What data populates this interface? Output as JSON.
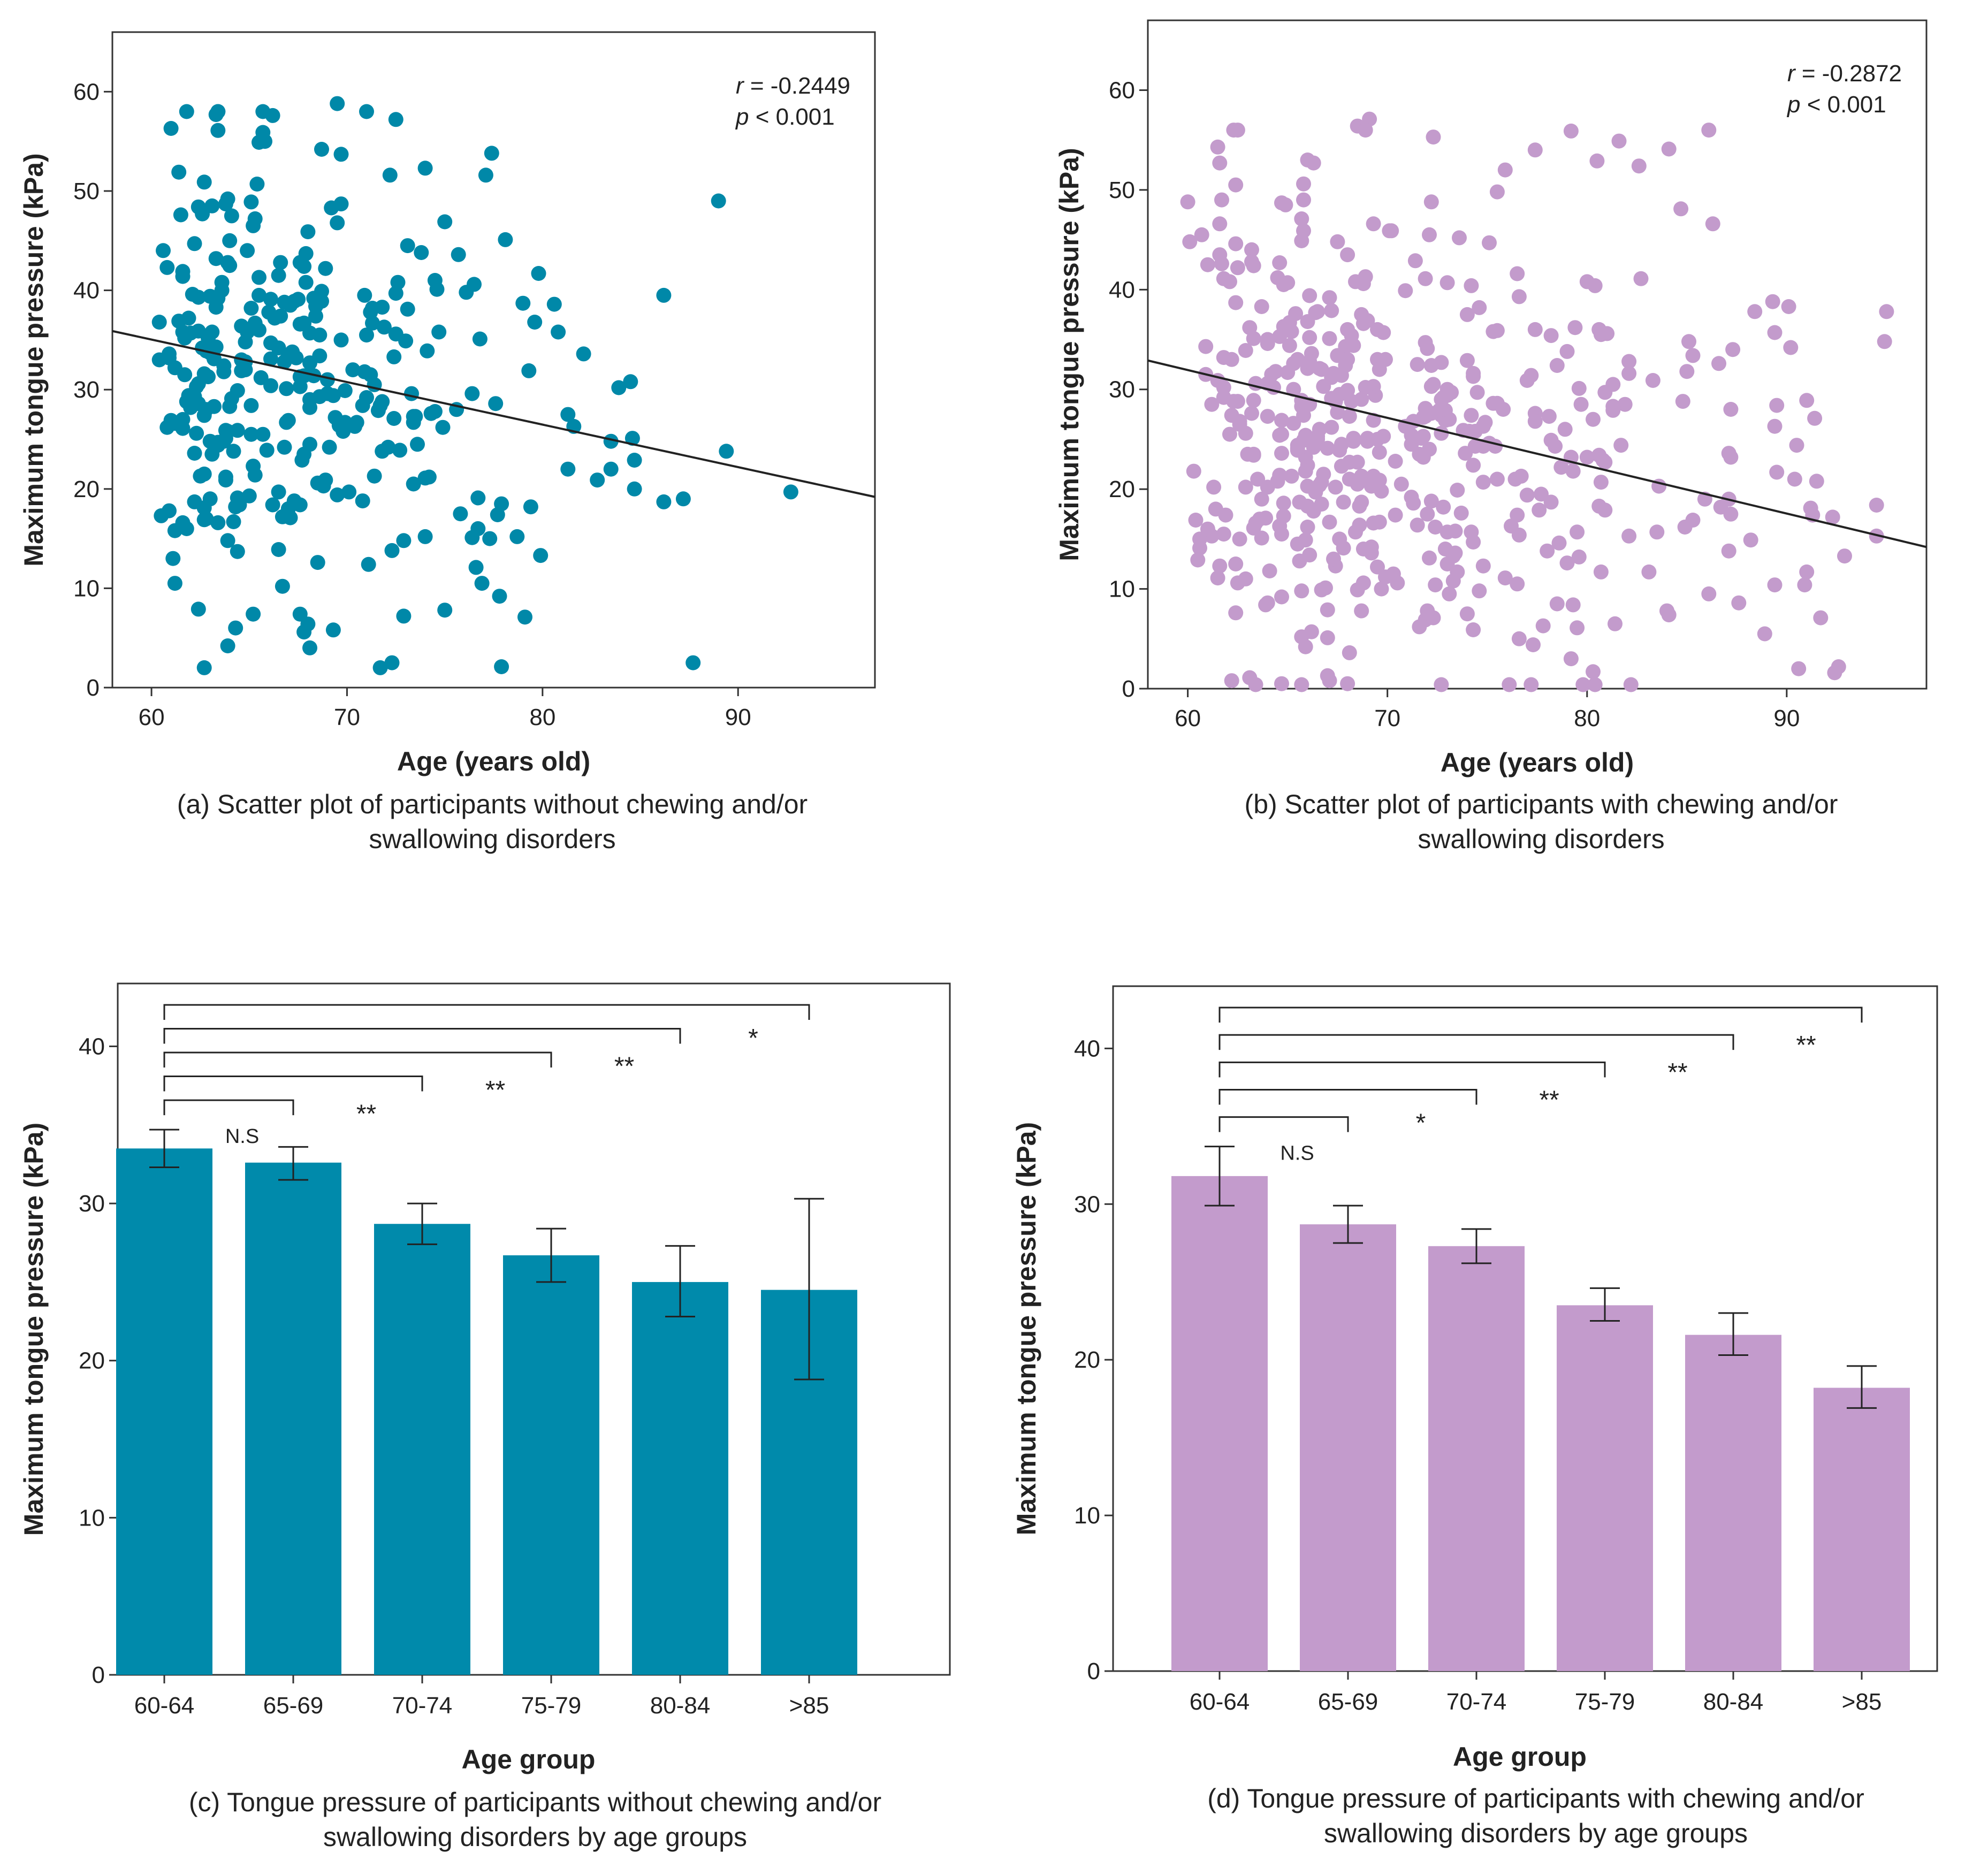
{
  "chart_data": [
    {
      "id": "a",
      "type": "scatter",
      "xlabel": "Age (years old)",
      "ylabel": "Maximum tongue pressure (kPa)",
      "xlim": [
        58,
        97
      ],
      "ylim": [
        0,
        66
      ],
      "xticks": [
        60,
        70,
        80,
        90
      ],
      "yticks": [
        0,
        10,
        20,
        30,
        40,
        50,
        60
      ],
      "xtick_labels": [
        "60",
        "70",
        "80",
        "90"
      ],
      "ytick_labels": [
        "0",
        "10",
        "20",
        "30",
        "40",
        "50",
        "60"
      ],
      "stats": {
        "r_sym": "r",
        "r_rest": " = -0.2449",
        "p_sym": "p",
        "p_rest": " < 0.001"
      },
      "regression": {
        "x": [
          58,
          97
        ],
        "y": [
          35.9,
          19.2
        ]
      },
      "point_color": "#0088a8",
      "caption": [
        "(a) Scatter plot of participants without chewing and/or",
        "swallowing disorders"
      ],
      "points_seed": 12345,
      "points": [
        [
          77.4,
          53.8
        ],
        [
          87.7,
          2.5
        ],
        [
          69.5,
          58.8
        ],
        [
          92.7,
          19.7
        ],
        [
          89.4,
          23.8
        ],
        [
          89.0,
          49.0
        ],
        [
          86.2,
          39.5
        ],
        [
          87.2,
          19.0
        ],
        [
          86.2,
          18.7
        ],
        [
          84.5,
          30.8
        ],
        [
          84.6,
          25.1
        ],
        [
          84.7,
          22.9
        ],
        [
          84.7,
          20.0
        ],
        [
          83.9,
          30.2
        ],
        [
          83.5,
          22.0
        ],
        [
          82.8,
          20.9
        ],
        [
          82.1,
          33.6
        ],
        [
          81.6,
          26.3
        ],
        [
          81.3,
          27.5
        ],
        [
          80.8,
          35.8
        ],
        [
          78.1,
          45.1
        ],
        [
          77.1,
          51.6
        ],
        [
          76.5,
          40.6
        ],
        [
          77.8,
          9.2
        ],
        [
          79.1,
          7.1
        ],
        [
          77.9,
          2.1
        ],
        [
          72.3,
          2.5
        ],
        [
          75.7,
          43.6
        ],
        [
          76.6,
          12.1
        ],
        [
          71.1,
          12.4
        ],
        [
          79.0,
          38.7
        ],
        [
          63.9,
          4.2
        ],
        [
          65.2,
          7.4
        ],
        [
          67.6,
          7.4
        ],
        [
          67.8,
          5.6
        ],
        [
          68.1,
          4.0
        ],
        [
          61.8,
          58.0
        ],
        [
          63.3,
          57.7
        ],
        [
          66.2,
          57.6
        ]
      ]
    },
    {
      "id": "b",
      "type": "scatter",
      "xlabel": "Age (years old)",
      "ylabel": "Maximum tongue pressure (kPa)",
      "xlim": [
        58,
        97
      ],
      "ylim": [
        0,
        67
      ],
      "xticks": [
        60,
        70,
        80,
        90
      ],
      "yticks": [
        0,
        10,
        20,
        30,
        40,
        50,
        60
      ],
      "xtick_labels": [
        "60",
        "70",
        "80",
        "90"
      ],
      "ytick_labels": [
        "0",
        "10",
        "20",
        "30",
        "40",
        "50",
        "60"
      ],
      "stats": {
        "r_sym": "r",
        "r_rest": " = -0.2872",
        "p_sym": "p",
        "p_rest": " < 0.001"
      },
      "regression": {
        "x": [
          58,
          97
        ],
        "y": [
          32.9,
          14.2
        ]
      },
      "point_color": "#c39bcc",
      "caption": [
        "(b) Scatter plot of participants with chewing and/or",
        "swallowing disorders"
      ],
      "points_seed": 67890,
      "points": [
        [
          69.1,
          57.1
        ],
        [
          68.5,
          56.4
        ],
        [
          72.3,
          55.3
        ],
        [
          77.4,
          54.0
        ],
        [
          84.1,
          54.1
        ],
        [
          80.5,
          52.9
        ],
        [
          95.0,
          37.8
        ],
        [
          94.9,
          34.8
        ],
        [
          94.5,
          18.4
        ],
        [
          94.5,
          15.3
        ],
        [
          92.9,
          13.3
        ],
        [
          92.6,
          2.2
        ],
        [
          92.4,
          1.6
        ],
        [
          91.5,
          20.8
        ],
        [
          91.0,
          11.7
        ],
        [
          91.2,
          18.1
        ],
        [
          90.9,
          10.4
        ],
        [
          91.0,
          28.9
        ],
        [
          90.1,
          38.3
        ],
        [
          90.2,
          34.2
        ],
        [
          90.5,
          24.4
        ],
        [
          89.3,
          38.8
        ],
        [
          89.4,
          35.7
        ],
        [
          90.6,
          2.0
        ],
        [
          88.2,
          14.9
        ],
        [
          86.3,
          46.6
        ],
        [
          85.3,
          33.4
        ],
        [
          60.0,
          48.8
        ],
        [
          60.1,
          44.8
        ],
        [
          60.3,
          21.8
        ],
        [
          60.4,
          16.9
        ],
        [
          60.6,
          14.1
        ],
        [
          60.5,
          12.9
        ],
        [
          61.5,
          54.3
        ],
        [
          61.6,
          52.7
        ],
        [
          62.2,
          0.8
        ],
        [
          66.0,
          53.0
        ],
        [
          67.0,
          1.3
        ],
        [
          68.0,
          0.5
        ]
      ]
    },
    {
      "id": "c",
      "type": "bar",
      "categories": [
        "60-64",
        "65-69",
        "70-74",
        "75-79",
        "80-84",
        ">85"
      ],
      "values": [
        33.5,
        32.6,
        28.7,
        26.7,
        25.0,
        24.5
      ],
      "error_low": [
        32.3,
        31.5,
        27.4,
        25.0,
        22.8,
        18.8
      ],
      "error_high": [
        34.7,
        33.6,
        30.0,
        28.4,
        27.3,
        30.3
      ],
      "xlabel": "Age group",
      "ylabel": "Maximum tongue pressure (kPa)",
      "ylim": [
        0,
        44
      ],
      "yticks": [
        0,
        10,
        20,
        30,
        40
      ],
      "ytick_labels": [
        "0",
        "10",
        "20",
        "30",
        "40"
      ],
      "bar_color": "#008aab",
      "comparisons": [
        {
          "to": 1,
          "label": "N.S"
        },
        {
          "to": 2,
          "label": "**"
        },
        {
          "to": 3,
          "label": "**"
        },
        {
          "to": 4,
          "label": "**"
        },
        {
          "to": 5,
          "label": "*"
        }
      ],
      "caption": [
        "(c) Tongue pressure of participants without chewing and/or",
        "swallowing disorders by age groups"
      ]
    },
    {
      "id": "d",
      "type": "bar",
      "categories": [
        "60-64",
        "65-69",
        "70-74",
        "75-79",
        "80-84",
        ">85"
      ],
      "values": [
        31.8,
        28.7,
        27.3,
        23.5,
        21.6,
        18.2
      ],
      "error_low": [
        29.9,
        27.5,
        26.2,
        22.5,
        20.3,
        16.9
      ],
      "error_high": [
        33.7,
        29.9,
        28.4,
        24.6,
        23.0,
        19.6
      ],
      "xlabel": "Age group",
      "ylabel": "Maximum tongue pressure (kPa)",
      "ylim": [
        0,
        44
      ],
      "yticks": [
        0,
        10,
        20,
        30,
        40
      ],
      "ytick_labels": [
        "0",
        "10",
        "20",
        "30",
        "40"
      ],
      "bar_color": "#c39bcc",
      "comparisons": [
        {
          "to": 1,
          "label": "N.S"
        },
        {
          "to": 2,
          "label": "*"
        },
        {
          "to": 3,
          "label": "**"
        },
        {
          "to": 4,
          "label": "**"
        },
        {
          "to": 5,
          "label": "**"
        }
      ],
      "caption": [
        "(d) Tongue pressure of participants with chewing and/or",
        "swallowing disorders by age groups"
      ]
    }
  ]
}
